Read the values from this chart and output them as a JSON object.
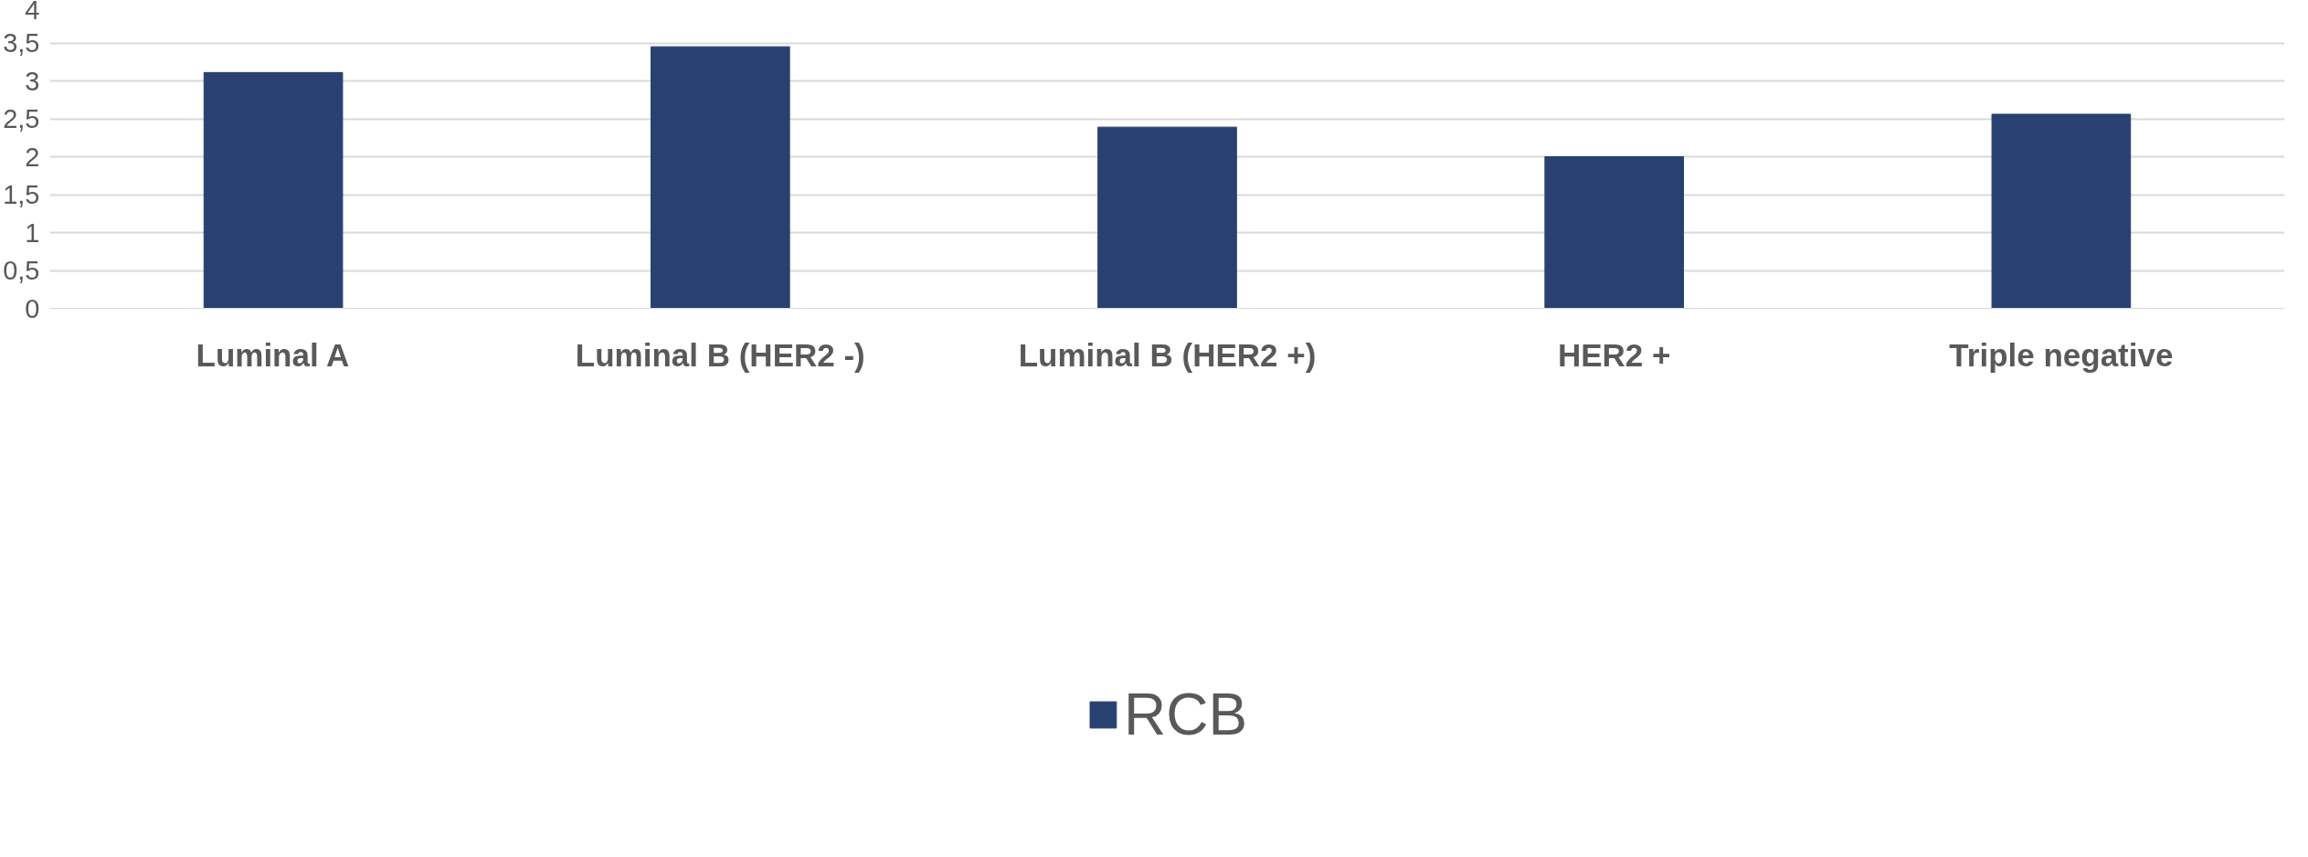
{
  "chart_data": {
    "type": "bar",
    "categories": [
      "Luminal A",
      "Luminal B (HER2 -)",
      "Luminal B (HER2 +)",
      "HER2 +",
      "Triple negative"
    ],
    "series": [
      {
        "name": "RCB",
        "color": "#294170",
        "values": [
          3.11,
          3.45,
          2.39,
          2.0,
          2.56
        ]
      }
    ],
    "ylim": [
      0,
      4
    ],
    "yticks": [
      0,
      {
        "value": 0.5,
        "label": "0,5"
      },
      1,
      {
        "value": 1.5,
        "label": "1,5"
      },
      2,
      {
        "value": 2.5,
        "label": "2,5"
      },
      3,
      {
        "value": 3.5,
        "label": "3,5"
      },
      4
    ],
    "grid": "y",
    "legend": "bottom"
  }
}
